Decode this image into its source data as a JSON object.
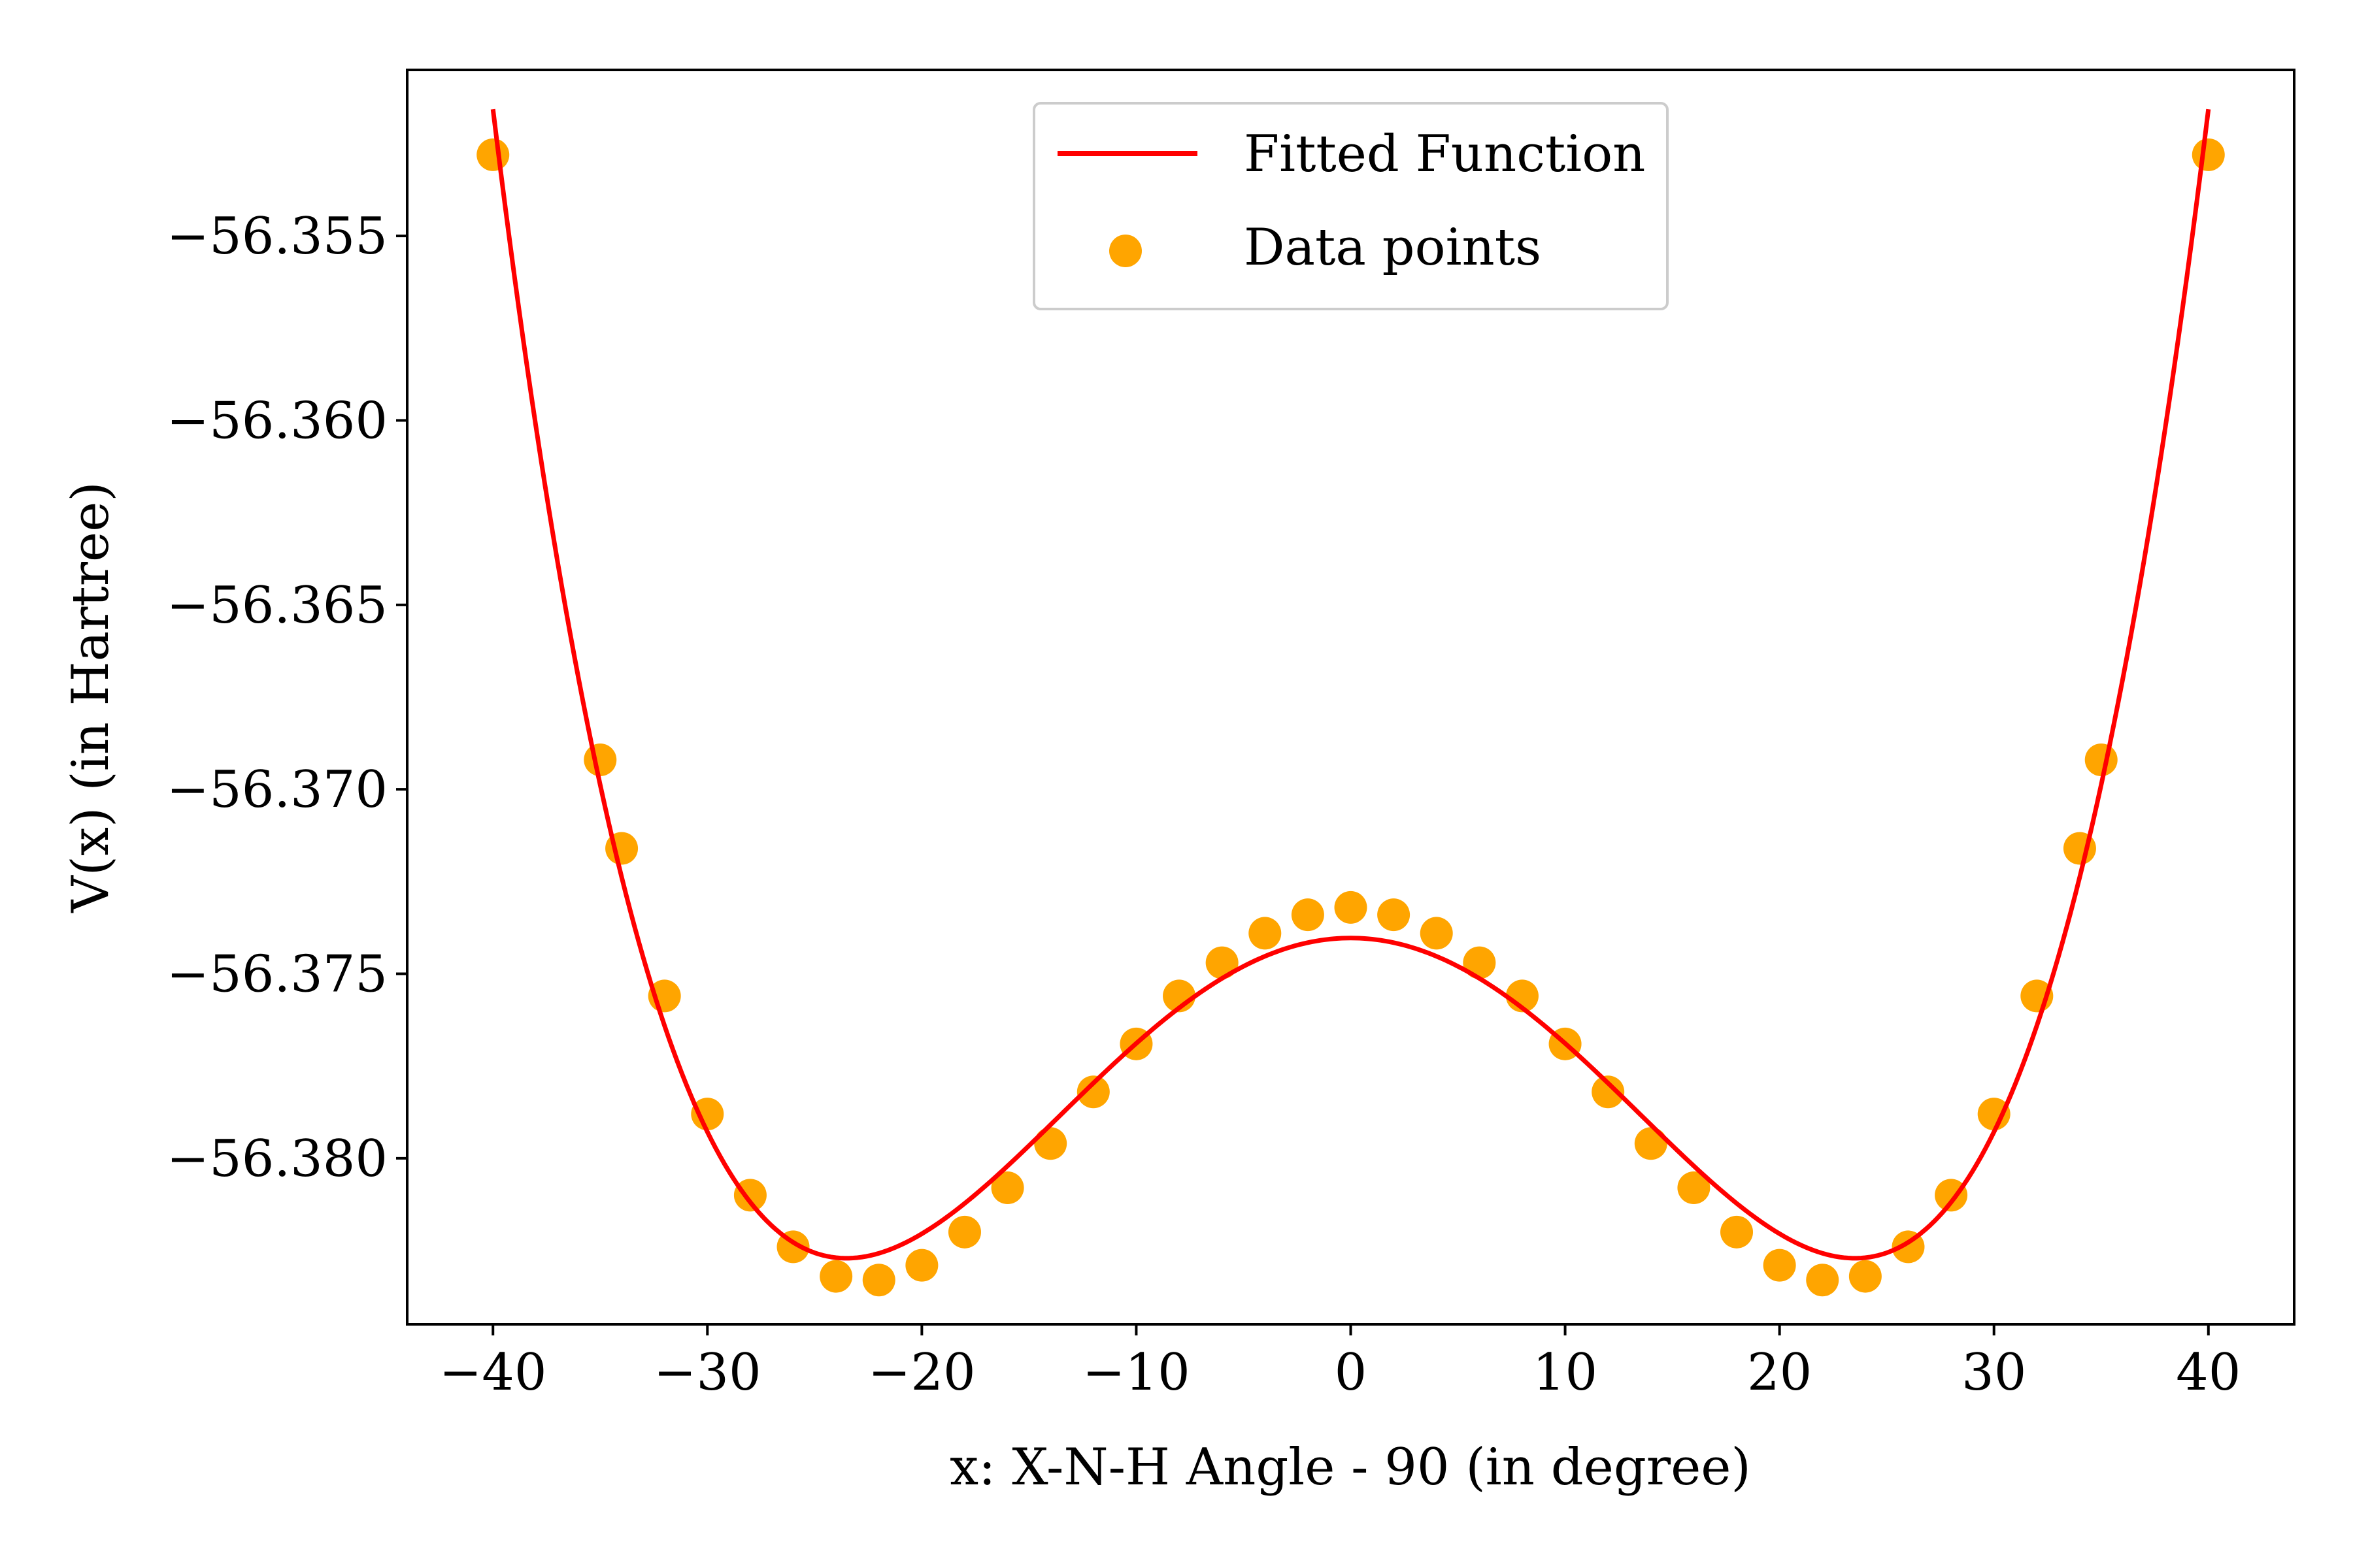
{
  "chart_data": {
    "type": "scatter",
    "xlabel": "x: X-N-H Angle - 90 (in degree)",
    "ylabel": "V(x) (in Hartree)",
    "xlim": [
      -44,
      44
    ],
    "ylim": [
      -56.3845,
      -56.3505
    ],
    "xticks": [
      -40,
      -30,
      -20,
      -10,
      0,
      10,
      20,
      30,
      40
    ],
    "xtick_labels": [
      "−40",
      "−30",
      "−20",
      "−10",
      "0",
      "10",
      "20",
      "30",
      "40"
    ],
    "yticks": [
      -56.355,
      -56.36,
      -56.365,
      -56.37,
      -56.375,
      -56.38
    ],
    "ytick_labels": [
      "−56.355",
      "−56.360",
      "−56.365",
      "−56.370",
      "−56.375",
      "−56.380"
    ],
    "grid": false,
    "legend_position": "top-center",
    "series": [
      {
        "name": "Fitted Function",
        "kind": "line",
        "color": "#ff0000",
        "model": "quartic",
        "coefficients": {
          "a": -56.37403,
          "b": -3.14e-05,
          "c": 2.84e-08
        },
        "x_range": [
          -40,
          40
        ]
      },
      {
        "name": "Data points",
        "kind": "scatter",
        "color": "#ffa500",
        "points": [
          [
            -40,
            -56.3528
          ],
          [
            -35,
            -56.3692
          ],
          [
            -34,
            -56.3716
          ],
          [
            -32,
            -56.3756
          ],
          [
            -30,
            -56.3788
          ],
          [
            -28,
            -56.381
          ],
          [
            -26,
            -56.3824
          ],
          [
            -24,
            -56.3832
          ],
          [
            -22,
            -56.3833
          ],
          [
            -20,
            -56.3829
          ],
          [
            -18,
            -56.382
          ],
          [
            -16,
            -56.3808
          ],
          [
            -14,
            -56.3796
          ],
          [
            -12,
            -56.3782
          ],
          [
            -10,
            -56.3769
          ],
          [
            -8,
            -56.3756
          ],
          [
            -6,
            -56.3747
          ],
          [
            -4,
            -56.3739
          ],
          [
            -2,
            -56.3734
          ],
          [
            0,
            -56.3732
          ],
          [
            2,
            -56.3734
          ],
          [
            4,
            -56.3739
          ],
          [
            6,
            -56.3747
          ],
          [
            8,
            -56.3756
          ],
          [
            10,
            -56.3769
          ],
          [
            12,
            -56.3782
          ],
          [
            14,
            -56.3796
          ],
          [
            16,
            -56.3808
          ],
          [
            18,
            -56.382
          ],
          [
            20,
            -56.3829
          ],
          [
            22,
            -56.3833
          ],
          [
            24,
            -56.3832
          ],
          [
            26,
            -56.3824
          ],
          [
            28,
            -56.381
          ],
          [
            30,
            -56.3788
          ],
          [
            32,
            -56.3756
          ],
          [
            34,
            -56.3716
          ],
          [
            35,
            -56.3692
          ],
          [
            40,
            -56.3528
          ]
        ]
      }
    ]
  }
}
